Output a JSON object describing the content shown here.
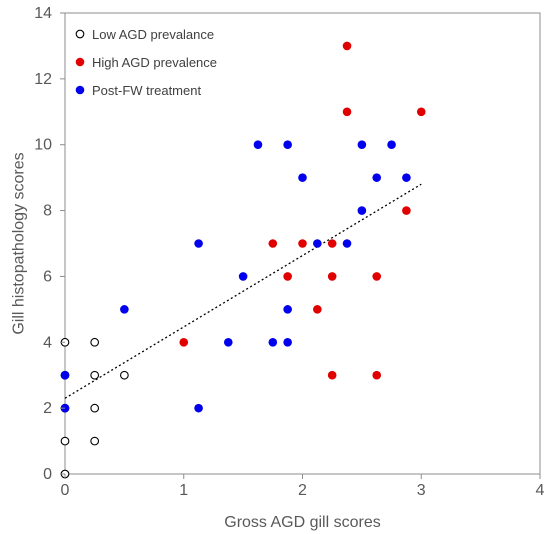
{
  "chart_data": {
    "type": "scatter",
    "xlabel": "Gross AGD gill scores",
    "ylabel": "Gill histopathology scores",
    "xlim": [
      0,
      4
    ],
    "ylim": [
      0,
      14
    ],
    "x_ticks": [
      0,
      1,
      2,
      3,
      4
    ],
    "y_ticks": [
      0,
      2,
      4,
      6,
      8,
      10,
      12,
      14
    ],
    "grid": false,
    "legend_position": "top-left",
    "series": [
      {
        "name": "Low AGD prevalance",
        "marker": "open-circle",
        "color": "#000000",
        "points": [
          [
            0,
            0
          ],
          [
            0,
            1
          ],
          [
            0,
            2
          ],
          [
            0,
            3
          ],
          [
            0,
            4
          ],
          [
            0.25,
            1
          ],
          [
            0.25,
            2
          ],
          [
            0.25,
            3
          ],
          [
            0.25,
            4
          ],
          [
            0.5,
            3
          ]
        ]
      },
      {
        "name": "High AGD prevalence",
        "marker": "filled-circle",
        "color": "#e00000",
        "points": [
          [
            1.0,
            4
          ],
          [
            1.75,
            7
          ],
          [
            1.875,
            6
          ],
          [
            2.0,
            7
          ],
          [
            2.125,
            5
          ],
          [
            2.25,
            7
          ],
          [
            2.25,
            6
          ],
          [
            2.25,
            3
          ],
          [
            2.375,
            13
          ],
          [
            2.375,
            11
          ],
          [
            2.625,
            6
          ],
          [
            2.625,
            3
          ],
          [
            2.875,
            8
          ],
          [
            3.0,
            11
          ]
        ]
      },
      {
        "name": "Post-FW treatment",
        "marker": "filled-circle",
        "color": "#0000ee",
        "points": [
          [
            0,
            3
          ],
          [
            0,
            2
          ],
          [
            0.5,
            5
          ],
          [
            1.125,
            7
          ],
          [
            1.125,
            2
          ],
          [
            1.375,
            4
          ],
          [
            1.5,
            6
          ],
          [
            1.625,
            10
          ],
          [
            1.75,
            4
          ],
          [
            1.875,
            10
          ],
          [
            1.875,
            5
          ],
          [
            1.875,
            4
          ],
          [
            2.0,
            9
          ],
          [
            2.125,
            7
          ],
          [
            2.375,
            7
          ],
          [
            2.5,
            10
          ],
          [
            2.5,
            8
          ],
          [
            2.625,
            9
          ],
          [
            2.75,
            10
          ],
          [
            2.875,
            9
          ]
        ]
      }
    ],
    "trendline": {
      "style": "dotted",
      "color": "#000000",
      "start": [
        0,
        2.3
      ],
      "end": [
        3,
        8.8
      ]
    }
  }
}
